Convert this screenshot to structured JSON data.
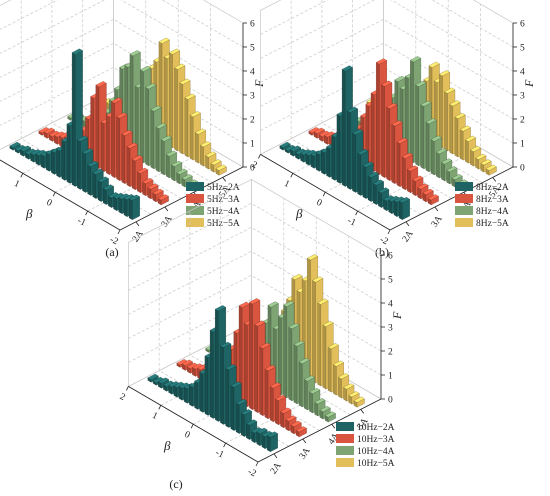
{
  "palette": {
    "series1": "#1f6464",
    "series2": "#d9553f",
    "series3": "#7ea474",
    "series4": "#e2bf5a",
    "grid": "#c8c8c8",
    "axis": "#222222"
  },
  "chart_data": [
    {
      "type": "bar",
      "panel_label": "(a)",
      "xlabel": "β",
      "ylabel": "",
      "zlabel": "F",
      "x_ticks": [
        "2",
        "1",
        "0",
        "-1",
        "-2"
      ],
      "y_ticks": [
        "2A",
        "3A",
        "4A",
        "5A"
      ],
      "z_ticks": [
        "0",
        "1",
        "2",
        "3",
        "4",
        "5",
        "6"
      ],
      "zlim": [
        0,
        6
      ],
      "legend_position": "bottom-right",
      "series": [
        {
          "name": "5Hz−2A",
          "values": [
            0.8,
            0.7,
            0.6,
            0.5,
            0.4,
            0.6,
            0.8,
            1.0,
            1.2,
            1.6,
            2.0,
            5.5,
            2.4,
            1.6,
            1.1,
            0.9,
            0.7,
            0.5,
            0.4,
            0.3,
            0.2,
            0.2,
            0.1,
            0.1
          ]
        },
        {
          "name": "5Hz−3A",
          "values": [
            0.2,
            0.3,
            0.4,
            0.5,
            0.8,
            1.2,
            1.6,
            2.0,
            2.6,
            3.1,
            2.4,
            2.0,
            3.4,
            2.8,
            1.8,
            1.2,
            0.8,
            0.6,
            0.5,
            0.4,
            0.3,
            0.2,
            0.2,
            0.1
          ]
        },
        {
          "name": "5Hz−4A",
          "values": [
            0.2,
            0.3,
            0.4,
            0.6,
            0.9,
            1.4,
            1.8,
            2.4,
            3.2,
            3.8,
            3.0,
            4.2,
            3.6,
            3.4,
            2.4,
            1.8,
            1.2,
            0.8,
            0.6,
            0.4,
            0.3,
            0.2,
            0.2,
            0.1
          ]
        },
        {
          "name": "5Hz−5A",
          "values": [
            0.2,
            0.3,
            0.5,
            0.8,
            1.2,
            1.8,
            2.4,
            2.9,
            3.4,
            3.9,
            3.6,
            4.1,
            3.2,
            2.8,
            2.4,
            2.0,
            1.5,
            1.0,
            0.8,
            0.5,
            0.4,
            0.3,
            0.2,
            0.1
          ]
        }
      ]
    },
    {
      "type": "bar",
      "panel_label": "(b)",
      "xlabel": "β",
      "ylabel": "",
      "zlabel": "F",
      "x_ticks": [
        "2",
        "1",
        "0",
        "-1",
        "-2"
      ],
      "y_ticks": [
        "2A",
        "3A",
        "4A",
        "5A"
      ],
      "z_ticks": [
        "0",
        "1",
        "2",
        "3",
        "4",
        "5",
        "6"
      ],
      "zlim": [
        0,
        6
      ],
      "legend_position": "bottom-right",
      "series": [
        {
          "name": "8Hz−2A",
          "values": [
            0.7,
            0.6,
            0.5,
            0.4,
            0.6,
            0.8,
            1.0,
            1.3,
            1.7,
            2.4,
            3.2,
            4.8,
            2.8,
            1.8,
            1.2,
            0.9,
            0.7,
            0.5,
            0.4,
            0.3,
            0.2,
            0.2,
            0.1,
            0.1
          ]
        },
        {
          "name": "8Hz−3A",
          "values": [
            0.2,
            0.3,
            0.4,
            0.6,
            0.9,
            1.3,
            1.8,
            2.4,
            3.0,
            3.8,
            4.6,
            3.2,
            2.6,
            2.0,
            1.4,
            1.0,
            0.8,
            0.6,
            0.5,
            0.4,
            0.3,
            0.2,
            0.2,
            0.1
          ]
        },
        {
          "name": "8Hz−4A",
          "values": [
            0.2,
            0.3,
            0.5,
            0.7,
            1.0,
            1.4,
            2.0,
            2.6,
            3.3,
            4.2,
            3.4,
            2.8,
            3.0,
            2.2,
            1.6,
            1.2,
            0.9,
            0.7,
            0.5,
            0.4,
            0.3,
            0.2,
            0.2,
            0.1
          ]
        },
        {
          "name": "8Hz−5A",
          "values": [
            0.2,
            0.3,
            0.4,
            0.6,
            0.9,
            1.2,
            1.6,
            2.0,
            2.4,
            3.0,
            2.6,
            3.1,
            2.4,
            2.0,
            1.6,
            1.2,
            1.0,
            0.8,
            0.6,
            0.5,
            0.4,
            0.3,
            0.2,
            0.1
          ]
        }
      ]
    },
    {
      "type": "bar",
      "panel_label": "(c)",
      "xlabel": "β",
      "ylabel": "",
      "zlabel": "F",
      "x_ticks": [
        "2",
        "1",
        "0",
        "-1",
        "-2"
      ],
      "y_ticks": [
        "2A",
        "3A",
        "4A",
        "5A"
      ],
      "z_ticks": [
        "0",
        "1",
        "2",
        "3",
        "4",
        "5",
        "6"
      ],
      "zlim": [
        0,
        6
      ],
      "legend_position": "bottom-right",
      "series": [
        {
          "name": "10Hz−2A",
          "values": [
            0.6,
            0.5,
            0.5,
            0.4,
            0.6,
            0.9,
            1.2,
            1.8,
            2.4,
            3.2,
            4.6,
            3.6,
            2.4,
            1.6,
            1.1,
            0.8,
            0.6,
            0.5,
            0.4,
            0.3,
            0.2,
            0.2,
            0.1,
            0.1
          ]
        },
        {
          "name": "10Hz−3A",
          "values": [
            0.2,
            0.3,
            0.4,
            0.6,
            1.0,
            1.4,
            2.0,
            2.8,
            3.6,
            4.4,
            3.4,
            4.0,
            2.8,
            2.0,
            1.4,
            1.0,
            0.8,
            0.6,
            0.5,
            0.4,
            0.3,
            0.2,
            0.2,
            0.1
          ]
        },
        {
          "name": "10Hz−4A",
          "values": [
            0.2,
            0.3,
            0.5,
            0.8,
            1.2,
            1.8,
            2.4,
            3.0,
            3.8,
            3.2,
            2.6,
            3.4,
            2.6,
            2.0,
            1.5,
            1.1,
            0.8,
            0.6,
            0.5,
            0.4,
            0.3,
            0.2,
            0.2,
            0.1
          ]
        },
        {
          "name": "10Hz−5A",
          "values": [
            0.2,
            0.3,
            0.5,
            0.8,
            1.2,
            1.8,
            2.6,
            3.4,
            4.2,
            5.0,
            4.0,
            3.4,
            3.8,
            2.8,
            2.2,
            1.6,
            1.2,
            0.9,
            0.7,
            0.5,
            0.4,
            0.3,
            0.2,
            0.1
          ]
        }
      ]
    }
  ]
}
